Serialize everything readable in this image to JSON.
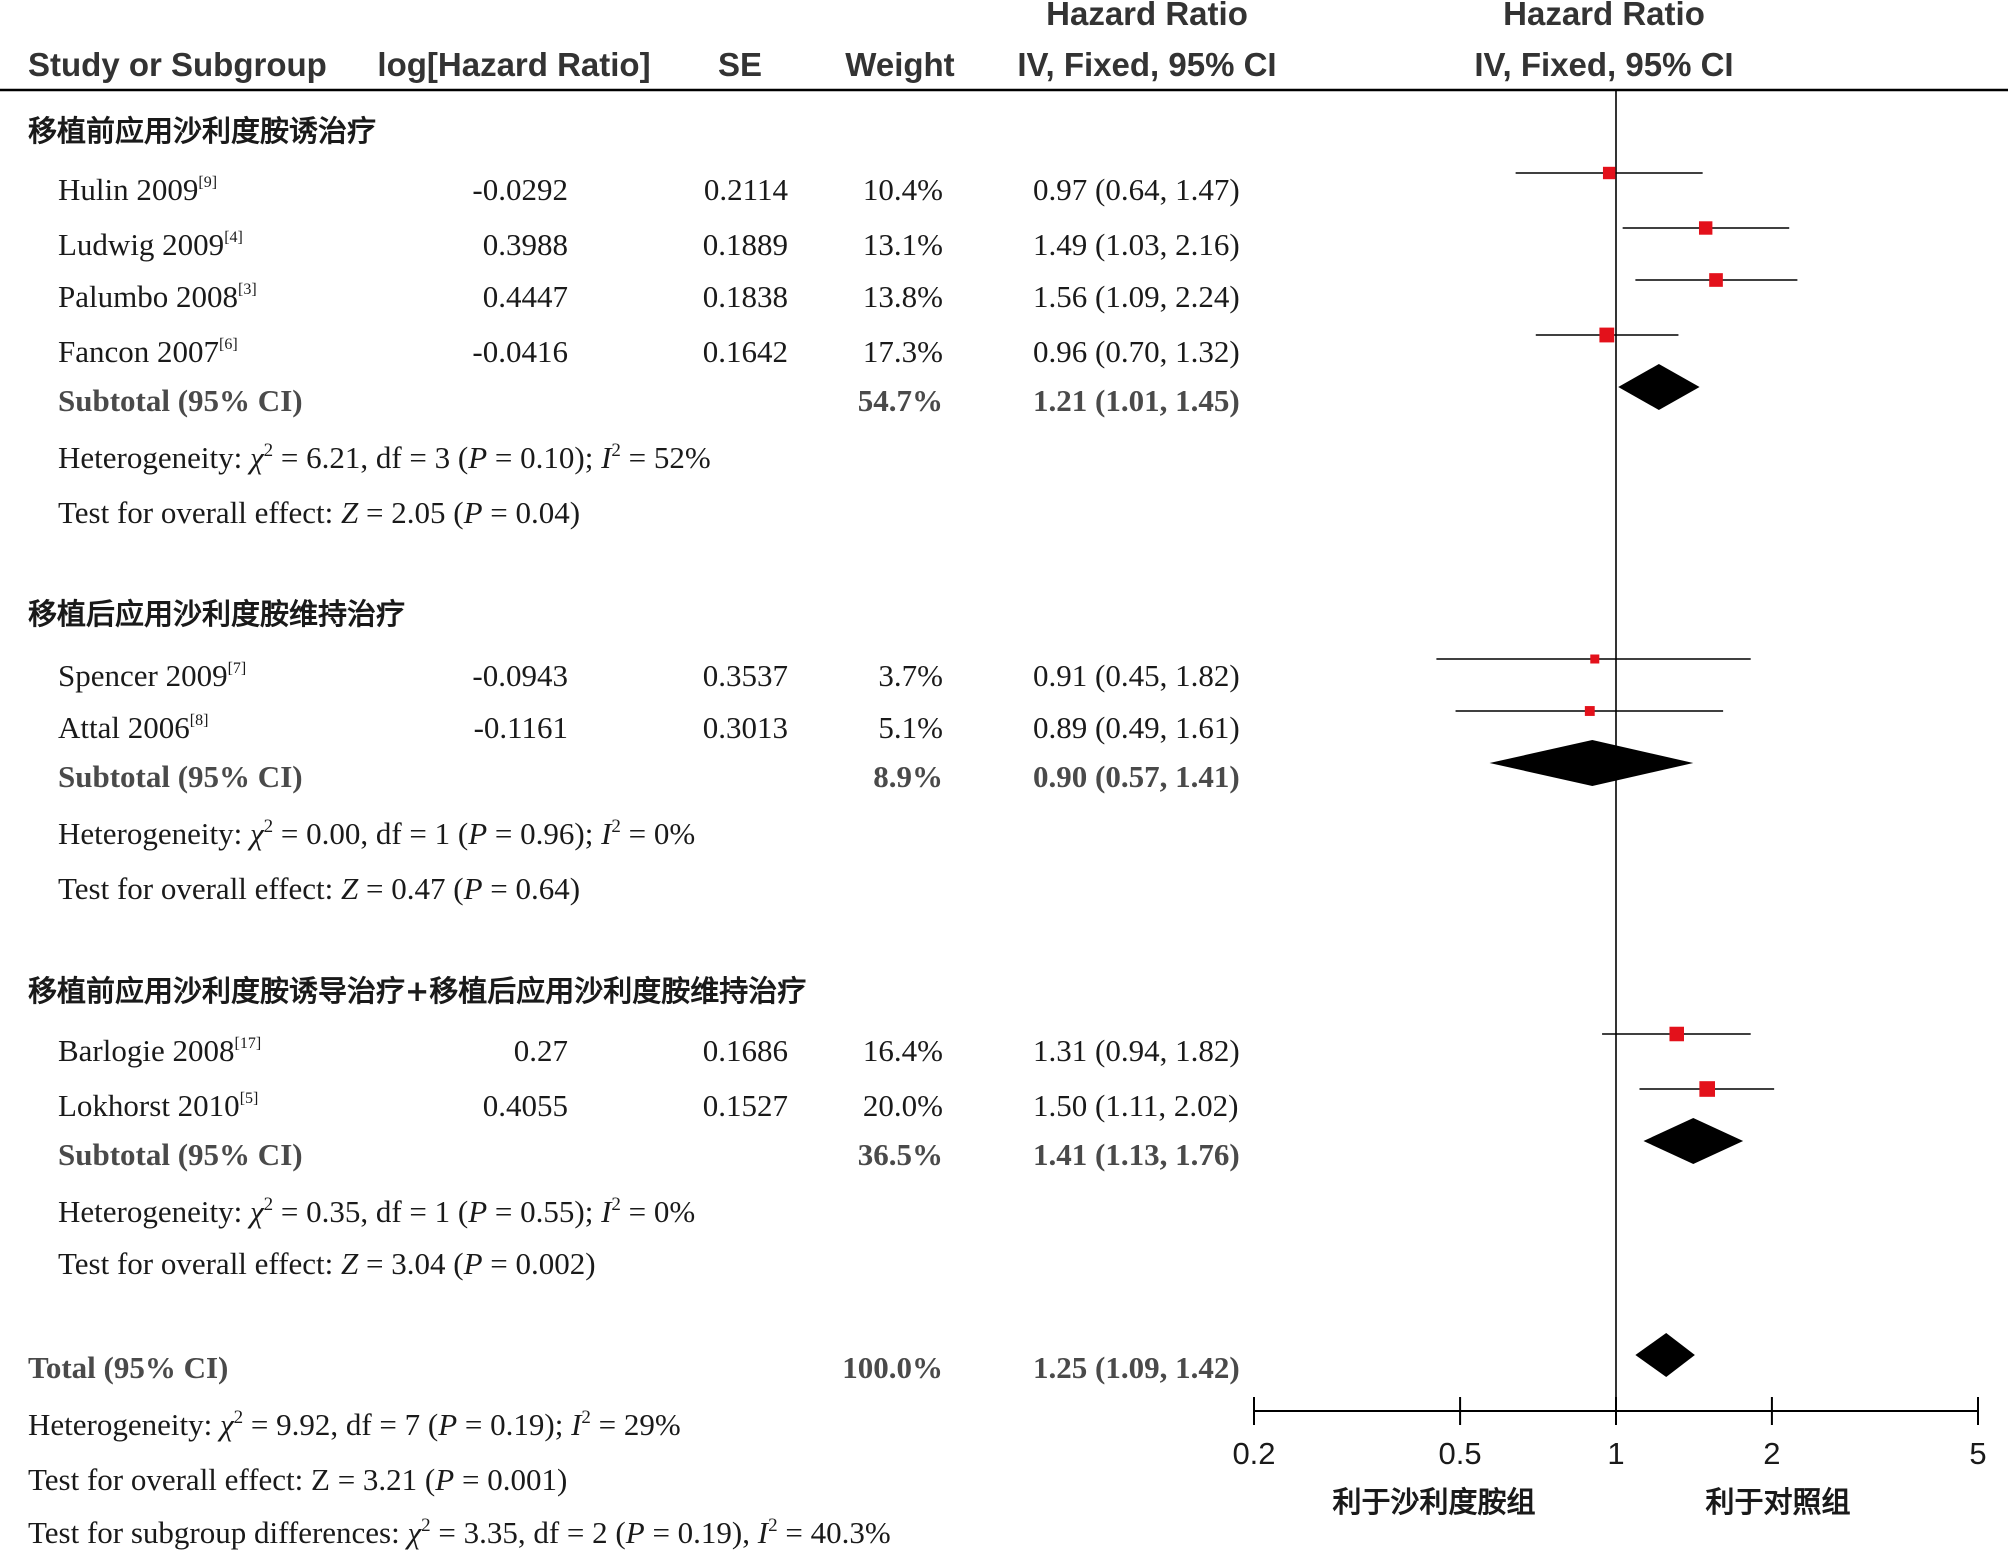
{
  "headers": {
    "study": "Study or Subgroup",
    "loghr": "log[Hazard Ratio]",
    "se": "SE",
    "weight": "Weight",
    "ci_top": "Hazard Ratio",
    "ci_bottom": "IV, Fixed, 95% CI",
    "plot_top": "Hazard Ratio",
    "plot_bottom": "IV, Fixed, 95% CI"
  },
  "colors": {
    "marker": "#e3111b",
    "diamond": "#000000",
    "line": "#000000"
  },
  "chart_data": {
    "type": "forest",
    "scale": "log",
    "xlim": [
      0.2,
      5
    ],
    "null_value": 1,
    "ticks": [
      "0.2",
      "0.5",
      "1",
      "2",
      "5"
    ],
    "tick_values": [
      0.2,
      0.5,
      1,
      2,
      5
    ],
    "favours_left": "利于沙利度胺组",
    "favours_right": "利于对照组",
    "groups": [
      {
        "title": "移植前应用沙利度胺诱治疗",
        "studies": [
          {
            "name": "Hulin 2009",
            "ref": "[9]",
            "loghr": "-0.0292",
            "se": "0.2114",
            "weight": "10.4%",
            "weight_value": 10.4,
            "ci_text": "0.97 (0.64, 1.47)",
            "hr": 0.97,
            "lo": 0.64,
            "hi": 1.47
          },
          {
            "name": "Ludwig 2009",
            "ref": "[4]",
            "loghr": "0.3988",
            "se": "0.1889",
            "weight": "13.1%",
            "weight_value": 13.1,
            "ci_text": "1.49 (1.03, 2.16)",
            "hr": 1.49,
            "lo": 1.03,
            "hi": 2.16
          },
          {
            "name": "Palumbo 2008",
            "ref": "[3]",
            "loghr": "0.4447",
            "se": "0.1838",
            "weight": "13.8%",
            "weight_value": 13.8,
            "ci_text": "1.56 (1.09, 2.24)",
            "hr": 1.56,
            "lo": 1.09,
            "hi": 2.24
          },
          {
            "name": "Fancon 2007",
            "ref": "[6]",
            "loghr": "-0.0416",
            "se": "0.1642",
            "weight": "17.3%",
            "weight_value": 17.3,
            "ci_text": "0.96 (0.70, 1.32)",
            "hr": 0.96,
            "lo": 0.7,
            "hi": 1.32
          }
        ],
        "subtotal": {
          "label": "Subtotal (95% CI)",
          "weight": "54.7%",
          "ci_text": "1.21 (1.01, 1.45)",
          "hr": 1.21,
          "lo": 1.01,
          "hi": 1.45
        },
        "heterogeneity": {
          "chi2": "6.21",
          "df": "3",
          "p": "0.10",
          "i2": "52%"
        },
        "overall": {
          "z": "2.05",
          "p": "0.04"
        }
      },
      {
        "title": "移植后应用沙利度胺维持治疗",
        "studies": [
          {
            "name": "Spencer 2009",
            "ref": "[7]",
            "loghr": "-0.0943",
            "se": "0.3537",
            "weight": "3.7%",
            "weight_value": 3.7,
            "ci_text": "0.91 (0.45, 1.82)",
            "hr": 0.91,
            "lo": 0.45,
            "hi": 1.82
          },
          {
            "name": "Attal 2006",
            "ref": "[8]",
            "loghr": "-0.1161",
            "se": "0.3013",
            "weight": "5.1%",
            "weight_value": 5.1,
            "ci_text": "0.89 (0.49, 1.61)",
            "hr": 0.89,
            "lo": 0.49,
            "hi": 1.61
          }
        ],
        "subtotal": {
          "label": "Subtotal (95% CI)",
          "weight": "8.9%",
          "ci_text": "0.90 (0.57, 1.41)",
          "hr": 0.9,
          "lo": 0.57,
          "hi": 1.41
        },
        "heterogeneity": {
          "chi2": "0.00",
          "df": "1",
          "p": "0.96",
          "i2": "0%"
        },
        "overall": {
          "z": "0.47",
          "p": "0.64"
        }
      },
      {
        "title": "移植前应用沙利度胺诱导治疗+移植后应用沙利度胺维持治疗",
        "studies": [
          {
            "name": "Barlogie 2008",
            "ref": "[17]",
            "loghr": "0.27",
            "se": "0.1686",
            "weight": "16.4%",
            "weight_value": 16.4,
            "ci_text": "1.31 (0.94, 1.82)",
            "hr": 1.31,
            "lo": 0.94,
            "hi": 1.82
          },
          {
            "name": "Lokhorst 2010",
            "ref": "[5]",
            "loghr": "0.4055",
            "se": "0.1527",
            "weight": "20.0%",
            "weight_value": 20.0,
            "ci_text": "1.50 (1.11, 2.02)",
            "hr": 1.5,
            "lo": 1.11,
            "hi": 2.02
          }
        ],
        "subtotal": {
          "label": "Subtotal (95% CI)",
          "weight": "36.5%",
          "ci_text": "1.41 (1.13, 1.76)",
          "hr": 1.41,
          "lo": 1.13,
          "hi": 1.76
        },
        "heterogeneity": {
          "chi2": "0.35",
          "df": "1",
          "p": "0.55",
          "i2": "0%"
        },
        "overall": {
          "z": "3.04",
          "p": "0.002"
        }
      }
    ],
    "total": {
      "label": "Total (95% CI)",
      "weight": "100.0%",
      "ci_text": "1.25 (1.09, 1.42)",
      "hr": 1.25,
      "lo": 1.09,
      "hi": 1.42,
      "heterogeneity": {
        "chi2": "9.92",
        "df": "7",
        "p": "0.19",
        "i2": "29%"
      },
      "overall_text": "Test for overall effect: Z = 3.21 (",
      "overall": {
        "z": "3.21",
        "p": "0.001"
      },
      "subgroup": {
        "chi2": "3.35",
        "df": "2",
        "p": "0.19",
        "i2": "40.3%"
      }
    }
  }
}
